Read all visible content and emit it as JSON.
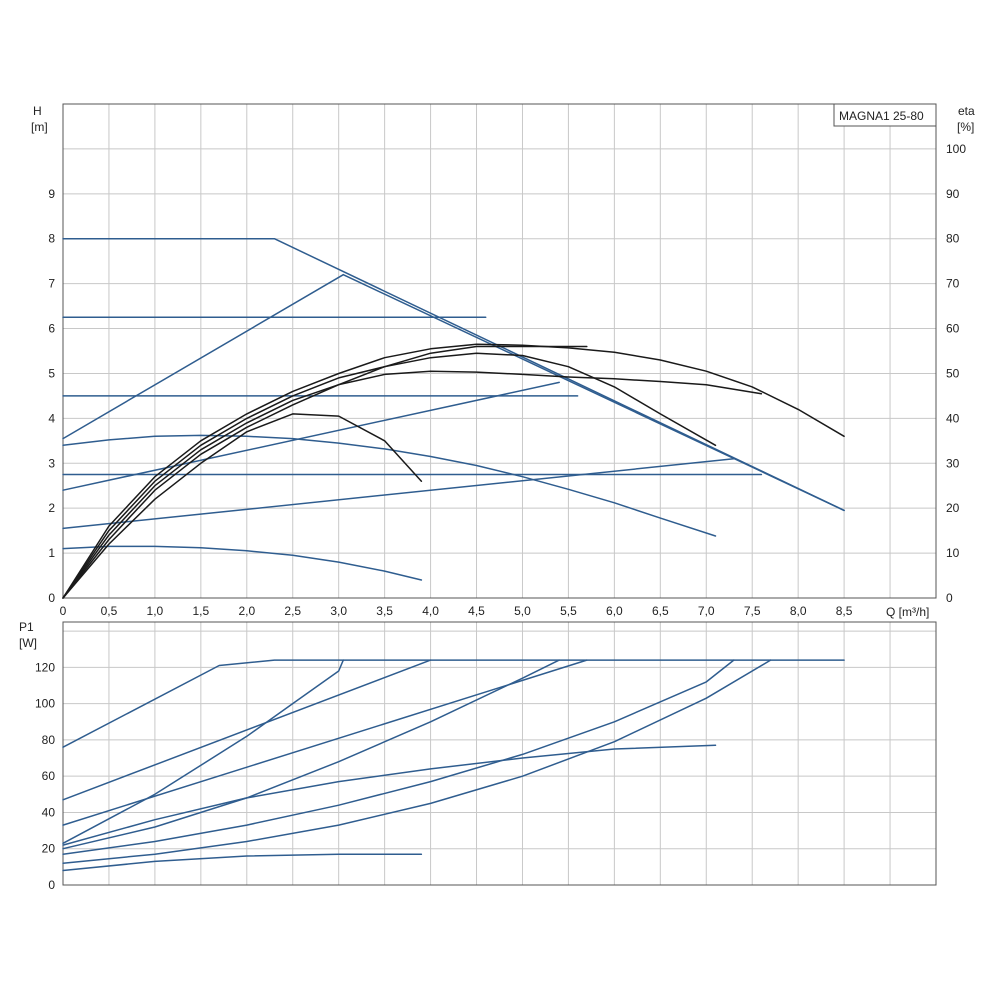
{
  "colors": {
    "blue": "#2f5d8f",
    "black": "#1a1a1a",
    "grid": "#c8c8c8"
  },
  "chart_data": [
    {
      "type": "line",
      "title": "MAGNA1 25-80",
      "xlabel": "Q [m³/h]",
      "ylabel_top": "H",
      "ylabel_unit": "[m]",
      "y2label_top": "eta",
      "y2label_unit": "[%]",
      "xlim": [
        0,
        9.5
      ],
      "ylim": [
        0,
        11
      ],
      "y2lim": [
        0,
        110
      ],
      "xticks": [
        "0",
        "0,5",
        "1,0",
        "1,5",
        "2,0",
        "2,5",
        "3,0",
        "3,5",
        "4,0",
        "4,5",
        "5,0",
        "5,5",
        "6,0",
        "6,5",
        "7,0",
        "7,5",
        "8,0",
        "8,5"
      ],
      "yticks": [
        "0",
        "1",
        "2",
        "3",
        "4",
        "5",
        "6",
        "7",
        "8",
        "9"
      ],
      "y2ticks": [
        "0",
        "10",
        "20",
        "30",
        "40",
        "50",
        "60",
        "70",
        "80",
        "90",
        "100"
      ],
      "grid": true,
      "series_head_blue": [
        {
          "x": [
            0,
            2.3,
            8.5
          ],
          "y": [
            8.0,
            8.0,
            1.95
          ]
        },
        {
          "x": [
            0,
            4.6
          ],
          "y": [
            6.25,
            6.25
          ]
        },
        {
          "x": [
            0,
            5.6
          ],
          "y": [
            4.5,
            4.5
          ]
        },
        {
          "x": [
            0,
            7.6
          ],
          "y": [
            2.75,
            2.75
          ]
        },
        {
          "x": [
            0,
            3.05
          ],
          "y": [
            3.55,
            7.2
          ]
        },
        {
          "x": [
            3.05,
            8.5
          ],
          "y": [
            7.2,
            1.95
          ]
        },
        {
          "x": [
            0,
            5.4
          ],
          "y": [
            2.4,
            4.8
          ]
        },
        {
          "x": [
            0,
            7.3
          ],
          "y": [
            1.55,
            3.1
          ]
        },
        {
          "x": [
            0,
            0.5,
            1.0,
            1.5,
            2.0,
            2.5,
            3.0,
            3.5,
            3.9
          ],
          "y": [
            1.1,
            1.15,
            1.15,
            1.12,
            1.05,
            0.95,
            0.8,
            0.6,
            0.4
          ]
        },
        {
          "x": [
            0,
            0.5,
            1.0,
            1.5,
            2.0,
            2.5,
            3.0,
            3.5,
            4.0,
            4.5,
            5.0,
            5.5,
            6.0,
            6.5,
            7.1
          ],
          "y": [
            3.4,
            3.52,
            3.6,
            3.62,
            3.6,
            3.55,
            3.45,
            3.32,
            3.15,
            2.95,
            2.7,
            2.42,
            2.12,
            1.78,
            1.38
          ]
        }
      ],
      "series_eta_black": [
        {
          "x": [
            0,
            0.5,
            1.0,
            1.5,
            2.0,
            2.5,
            3.0,
            3.5,
            4.0,
            4.5,
            5.0,
            5.5,
            6.0,
            6.5,
            7.0,
            7.5,
            8.0,
            8.5
          ],
          "y": [
            0,
            16,
            27,
            35,
            41,
            46,
            50,
            53.5,
            55.5,
            56.5,
            56.3,
            55.7,
            54.7,
            53,
            50.5,
            47,
            42,
            36
          ]
        },
        {
          "x": [
            0,
            0.5,
            1.0,
            1.5,
            2.0,
            2.5,
            3.0,
            3.5,
            4.0,
            4.5,
            5.0,
            5.5,
            6.0,
            6.5,
            7.0,
            7.6
          ],
          "y": [
            0,
            14,
            25,
            33,
            39,
            44,
            47.5,
            49.8,
            50.5,
            50.3,
            49.8,
            49.2,
            48.8,
            48.2,
            47.5,
            45.5
          ]
        },
        {
          "x": [
            0,
            0.5,
            1.0,
            1.5,
            2.0,
            2.5,
            3.0,
            3.5,
            4.0,
            4.5,
            5.0,
            5.5,
            6.0,
            6.5,
            7.1
          ],
          "y": [
            0,
            15,
            26,
            34,
            40,
            45,
            49,
            51.5,
            53.5,
            54.5,
            54,
            51.5,
            47,
            41,
            34
          ]
        },
        {
          "x": [
            0,
            0.5,
            1.0,
            1.5,
            2.0,
            2.5,
            3.0,
            3.5,
            3.9
          ],
          "y": [
            0,
            12,
            22,
            30,
            37,
            41,
            40.5,
            35,
            26
          ]
        },
        {
          "x": [
            0,
            0.5,
            1.0,
            1.5,
            2.0,
            2.5,
            3.0,
            3.5,
            4.0,
            4.5,
            5.0,
            5.7
          ],
          "y": [
            0,
            13,
            24,
            32,
            38,
            43,
            47.5,
            51.5,
            54.5,
            56,
            56,
            56
          ]
        }
      ]
    },
    {
      "type": "line",
      "ylabel_top": "P1",
      "ylabel_unit": "[W]",
      "xlim": [
        0,
        9.5
      ],
      "ylim": [
        0,
        145
      ],
      "yticks": [
        "0",
        "20",
        "40",
        "60",
        "80",
        "100",
        "120"
      ],
      "grid": true,
      "series_power_blue": [
        {
          "x": [
            0,
            1.7,
            2.3,
            8.5
          ],
          "y": [
            76,
            121,
            124,
            124
          ]
        },
        {
          "x": [
            0,
            4.0
          ],
          "y": [
            47,
            124
          ]
        },
        {
          "x": [
            0,
            1.0,
            2.0,
            2.5,
            3.0,
            3.05
          ],
          "y": [
            23,
            50,
            82,
            100,
            118,
            124
          ]
        },
        {
          "x": [
            0,
            5.7
          ],
          "y": [
            33,
            124
          ]
        },
        {
          "x": [
            0,
            1.0,
            2.0,
            3.0,
            4.0,
            5.0,
            5.4
          ],
          "y": [
            20,
            32,
            48,
            68,
            90,
            114,
            124
          ]
        },
        {
          "x": [
            0,
            1.0,
            2.0,
            3.0,
            4.0,
            5.0,
            6.0,
            7.0,
            7.3
          ],
          "y": [
            17,
            24,
            33,
            44,
            57,
            72,
            90,
            112,
            124
          ]
        },
        {
          "x": [
            0,
            1.0,
            2.0,
            3.0,
            4.0,
            5.0,
            6.0,
            7.0,
            7.7
          ],
          "y": [
            12,
            17,
            24,
            33,
            45,
            60,
            79,
            103,
            124
          ]
        },
        {
          "x": [
            0,
            1.0,
            2.0,
            3.0,
            4.0,
            5.0,
            6.0,
            7.1
          ],
          "y": [
            22,
            36,
            48,
            57,
            64,
            70,
            75,
            77
          ]
        },
        {
          "x": [
            0,
            1.0,
            2.0,
            3.0,
            3.9
          ],
          "y": [
            8,
            13,
            16,
            17,
            17
          ]
        }
      ]
    }
  ]
}
